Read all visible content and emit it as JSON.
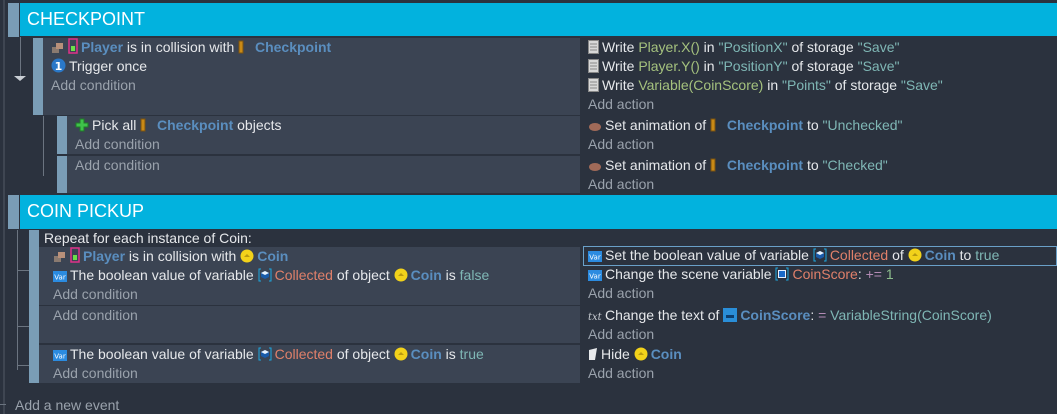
{
  "colors": {
    "group_header": "#02b2de",
    "event_bar": "#7a9db6",
    "panel": "#3b4453",
    "background": "#2b323e",
    "object": "#5a8ebf",
    "variable": "#e0806a",
    "string": "#7fb7b5"
  },
  "groups": [
    {
      "title": "CHECKPOINT",
      "events": [
        {
          "conditions": [
            [
              {
                "icon": "collision-icon"
              },
              {
                "icon": "player-icon"
              },
              {
                "t": "Player",
                "s": "obj"
              },
              {
                "t": " is in collision with "
              },
              {
                "icon": "checkpoint-icon"
              },
              {
                "t": "  Checkpoint",
                "s": "obj"
              }
            ],
            [
              {
                "icon": "trigger-once-icon"
              },
              {
                "t": "Trigger once"
              }
            ],
            [
              {
                "t": "Add condition",
                "s": "add"
              }
            ]
          ],
          "actions": [
            [
              {
                "icon": "storage-icon"
              },
              {
                "t": "Write "
              },
              {
                "t": "Player.X()",
                "s": "expr"
              },
              {
                "t": " in "
              },
              {
                "t": "\"PositionX\"",
                "s": "str"
              },
              {
                "t": " of storage "
              },
              {
                "t": "\"Save\"",
                "s": "str"
              }
            ],
            [
              {
                "icon": "storage-icon"
              },
              {
                "t": "Write "
              },
              {
                "t": "Player.Y()",
                "s": "expr"
              },
              {
                "t": " in "
              },
              {
                "t": "\"PositionY\"",
                "s": "str"
              },
              {
                "t": " of storage "
              },
              {
                "t": "\"Save\"",
                "s": "str"
              }
            ],
            [
              {
                "icon": "storage-icon"
              },
              {
                "t": "Write "
              },
              {
                "t": "Variable(CoinScore)",
                "s": "expr"
              },
              {
                "t": " in "
              },
              {
                "t": "\"Points\"",
                "s": "str"
              },
              {
                "t": " of storage "
              },
              {
                "t": "\"Save\"",
                "s": "str"
              }
            ],
            [
              {
                "t": "Add action",
                "s": "add"
              }
            ]
          ]
        },
        {
          "conditions": [
            [
              {
                "icon": "pick-all-icon"
              },
              {
                "t": "Pick all "
              },
              {
                "icon": "checkpoint-icon"
              },
              {
                "t": "  Checkpoint",
                "s": "obj"
              },
              {
                "t": " objects"
              }
            ],
            [
              {
                "t": "Add condition",
                "s": "add"
              }
            ]
          ],
          "actions": [
            [
              {
                "icon": "animation-icon"
              },
              {
                "t": "Set animation of "
              },
              {
                "icon": "checkpoint-icon"
              },
              {
                "t": "  Checkpoint",
                "s": "obj"
              },
              {
                "t": " to "
              },
              {
                "t": "\"Unchecked\"",
                "s": "str"
              }
            ],
            [
              {
                "t": "Add action",
                "s": "add"
              }
            ]
          ]
        },
        {
          "conditions": [
            [
              {
                "t": "Add condition",
                "s": "add"
              }
            ]
          ],
          "actions": [
            [
              {
                "icon": "animation-icon"
              },
              {
                "t": "Set animation of "
              },
              {
                "icon": "checkpoint-icon"
              },
              {
                "t": "  Checkpoint",
                "s": "obj"
              },
              {
                "t": " to "
              },
              {
                "t": "\"Checked\"",
                "s": "str"
              }
            ],
            [
              {
                "t": "Add action",
                "s": "add"
              }
            ]
          ]
        }
      ]
    },
    {
      "title": "COIN PICKUP",
      "repeat_label": "Repeat for each instance of Coin:",
      "events": [
        {
          "conditions": [
            [
              {
                "icon": "collision-icon"
              },
              {
                "icon": "player-icon"
              },
              {
                "t": "Player",
                "s": "obj"
              },
              {
                "t": " is in collision with "
              },
              {
                "icon": "coin-icon"
              },
              {
                "t": "Coin",
                "s": "obj"
              }
            ],
            [
              {
                "icon": "variable-icon"
              },
              {
                "t": "The boolean value of variable "
              },
              {
                "icon": "object-variable-icon"
              },
              {
                "t": "Collected",
                "s": "var"
              },
              {
                "t": " of object "
              },
              {
                "icon": "coin-icon"
              },
              {
                "t": "Coin",
                "s": "obj"
              },
              {
                "t": " is "
              },
              {
                "t": "false",
                "s": "str"
              }
            ],
            [
              {
                "t": "Add condition",
                "s": "add"
              }
            ]
          ],
          "actions": [
            [
              {
                "icon": "variable-icon"
              },
              {
                "t": "Set the boolean value of variable "
              },
              {
                "icon": "object-variable-icon"
              },
              {
                "t": "Collected",
                "s": "var"
              },
              {
                "t": " of "
              },
              {
                "icon": "coin-icon"
              },
              {
                "t": "Coin",
                "s": "obj"
              },
              {
                "t": " to "
              },
              {
                "t": "true",
                "s": "str"
              }
            ],
            [
              {
                "icon": "variable-icon"
              },
              {
                "t": "Change the scene variable "
              },
              {
                "icon": "scene-variable-icon"
              },
              {
                "t": "CoinScore",
                "s": "var"
              },
              {
                "t": ": "
              },
              {
                "t": "+=",
                "s": "op"
              },
              {
                "t": " 1",
                "s": "num"
              }
            ],
            [
              {
                "t": "Add action",
                "s": "add"
              }
            ]
          ]
        },
        {
          "conditions": [
            [
              {
                "t": "Add condition",
                "s": "add"
              }
            ]
          ],
          "actions": [
            [
              {
                "icon": "text-icon"
              },
              {
                "t": "Change the text of "
              },
              {
                "icon": "text-object-icon"
              },
              {
                "t": "CoinScore",
                "s": "obj"
              },
              {
                "t": ": "
              },
              {
                "t": "=",
                "s": "op"
              },
              {
                "t": " VariableString(CoinScore)",
                "s": "str"
              }
            ],
            [
              {
                "t": "Add action",
                "s": "add"
              }
            ]
          ]
        },
        {
          "conditions": [
            [
              {
                "icon": "variable-icon"
              },
              {
                "t": "The boolean value of variable "
              },
              {
                "icon": "object-variable-icon"
              },
              {
                "t": "Collected",
                "s": "var"
              },
              {
                "t": " of object "
              },
              {
                "icon": "coin-icon"
              },
              {
                "t": "Coin",
                "s": "obj"
              },
              {
                "t": " is "
              },
              {
                "t": "true",
                "s": "str"
              }
            ],
            [
              {
                "t": "Add condition",
                "s": "add"
              }
            ]
          ],
          "actions": [
            [
              {
                "icon": "hide-icon"
              },
              {
                "t": "Hide "
              },
              {
                "icon": "coin-icon"
              },
              {
                "t": "Coin",
                "s": "obj"
              }
            ],
            [
              {
                "t": "Add action",
                "s": "add"
              }
            ]
          ]
        }
      ]
    }
  ],
  "footer": {
    "add_event": "Add a new event"
  }
}
